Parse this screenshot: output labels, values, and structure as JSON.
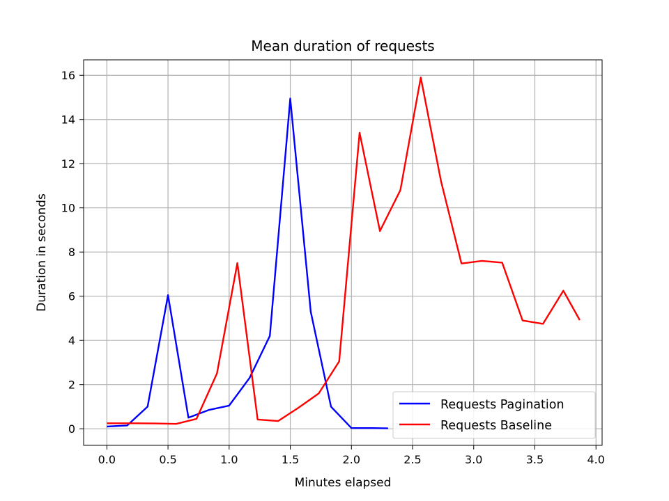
{
  "chart_data": {
    "type": "line",
    "title": "Mean duration of requests",
    "xlabel": "Minutes elapsed",
    "ylabel": "Duration in seconds",
    "xlim": [
      -0.19,
      4.05
    ],
    "ylim": [
      -0.75,
      16.7
    ],
    "xticks": [
      0.0,
      0.5,
      1.0,
      1.5,
      2.0,
      2.5,
      3.0,
      3.5,
      4.0
    ],
    "xtick_labels": [
      "0.0",
      "0.5",
      "1.0",
      "1.5",
      "2.0",
      "2.5",
      "3.0",
      "3.5",
      "4.0"
    ],
    "yticks": [
      0,
      2,
      4,
      6,
      8,
      10,
      12,
      14,
      16
    ],
    "ytick_labels": [
      "0",
      "2",
      "4",
      "6",
      "8",
      "10",
      "12",
      "14",
      "16"
    ],
    "grid": true,
    "legend_position": "lower-right",
    "series": [
      {
        "name": "Requests Pagination",
        "color": "#0000ff",
        "x": [
          0.0,
          0.167,
          0.333,
          0.5,
          0.667,
          0.833,
          1.0,
          1.167,
          1.333,
          1.5,
          1.667,
          1.833,
          2.0,
          2.167,
          2.3
        ],
        "y": [
          0.1,
          0.15,
          1.0,
          6.05,
          0.5,
          0.85,
          1.05,
          2.3,
          4.2,
          14.95,
          5.3,
          1.0,
          0.03,
          0.03,
          0.02
        ]
      },
      {
        "name": "Requests Baseline",
        "color": "#ff0000",
        "x": [
          0.0,
          0.233,
          0.4,
          0.567,
          0.733,
          0.9,
          1.067,
          1.233,
          1.4,
          1.567,
          1.733,
          1.9,
          2.067,
          2.233,
          2.4,
          2.567,
          2.733,
          2.9,
          3.067,
          3.233,
          3.4,
          3.567,
          3.733,
          3.867
        ],
        "y": [
          0.25,
          0.25,
          0.24,
          0.22,
          0.45,
          2.5,
          7.5,
          0.42,
          0.35,
          0.95,
          1.6,
          3.05,
          13.4,
          8.95,
          10.8,
          15.9,
          11.2,
          7.48,
          7.6,
          7.52,
          4.9,
          4.75,
          6.25,
          4.92
        ]
      }
    ]
  }
}
